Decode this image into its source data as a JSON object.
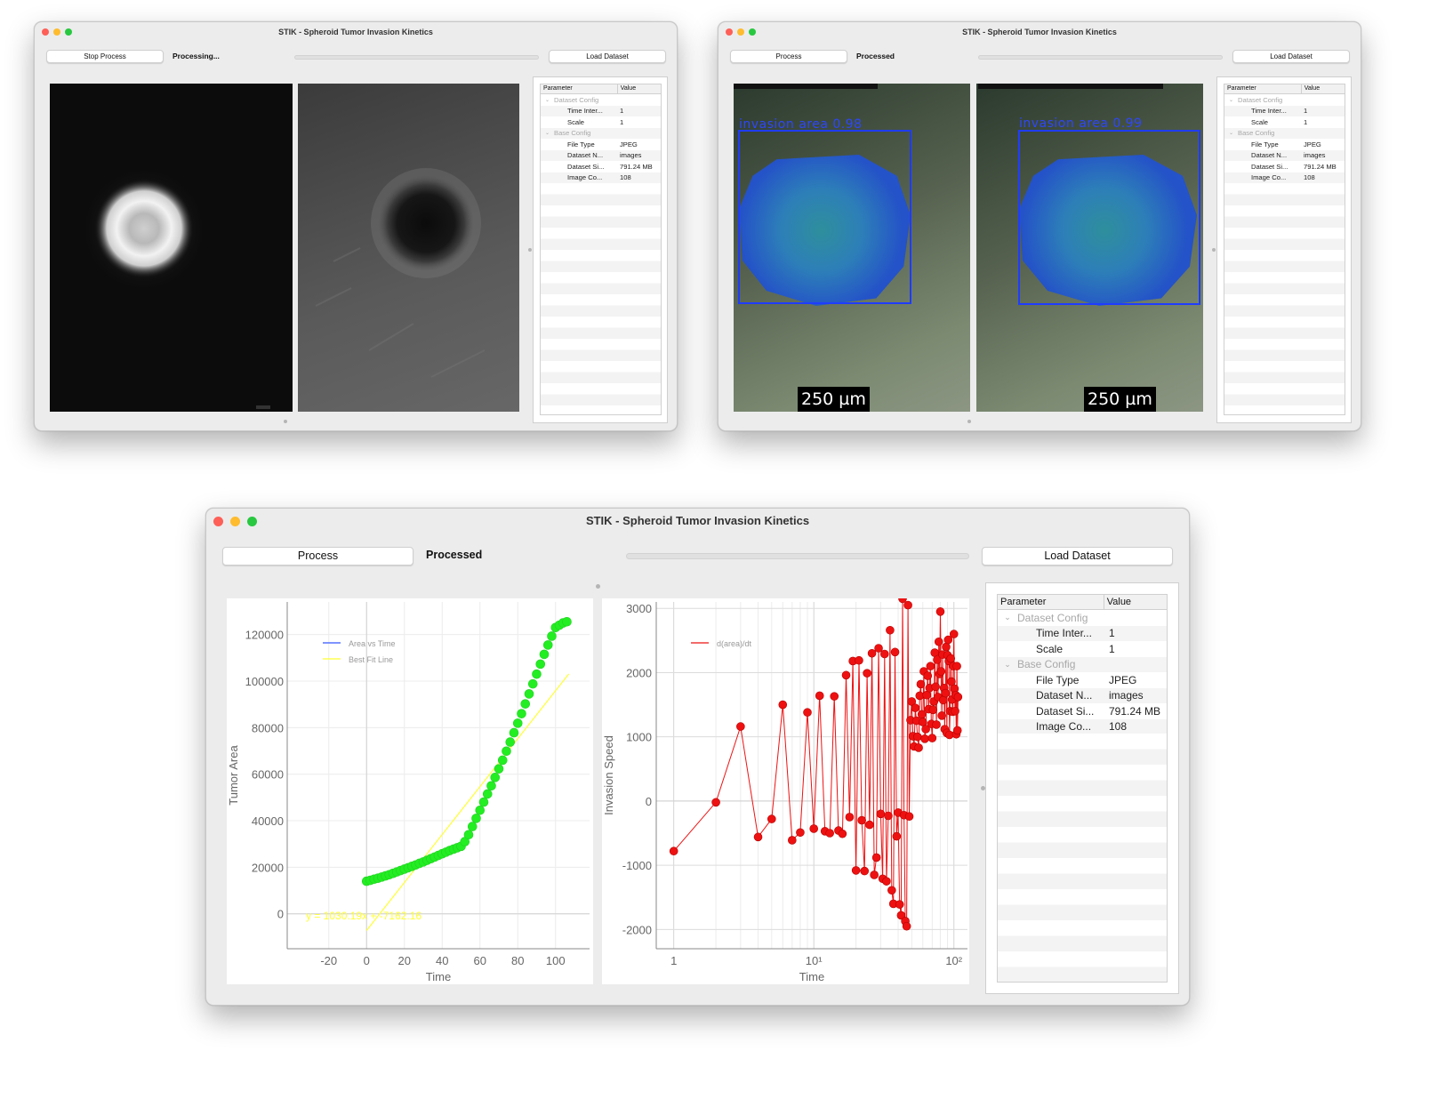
{
  "app_title": "STIK - Spheroid Tumor Invasion Kinetics",
  "windows": {
    "w1": {
      "title": "STIK - Spheroid Tumor Invasion Kinetics",
      "action_button": "Stop Process",
      "status": "Processing...",
      "load_button": "Load Dataset",
      "progress": 0
    },
    "w2": {
      "title": "STIK - Spheroid Tumor Invasion Kinetics",
      "action_button": "Process",
      "status": "Processed",
      "load_button": "Load Dataset",
      "progress": 0,
      "detections": [
        {
          "label": "invasion area 0.98",
          "scale_bar": "250 µm"
        },
        {
          "label": "invasion area 0.99",
          "scale_bar": "250 µm"
        }
      ]
    },
    "w3": {
      "title": "STIK - Spheroid Tumor Invasion Kinetics",
      "action_button": "Process",
      "status": "Processed",
      "load_button": "Load Dataset",
      "progress": 0
    }
  },
  "param_table": {
    "headers": [
      "Parameter",
      "Value"
    ],
    "groups": [
      {
        "name": "Dataset Config",
        "rows": [
          {
            "param": "Time Inter...",
            "value": "1"
          },
          {
            "param": "Scale",
            "value": "1"
          }
        ]
      },
      {
        "name": "Base Config",
        "rows": [
          {
            "param": "File Type",
            "value": "JPEG"
          },
          {
            "param": "Dataset N...",
            "value": "images"
          },
          {
            "param": "Dataset Si...",
            "value": "791.24 MB"
          },
          {
            "param": "Image Co...",
            "value": "108"
          }
        ]
      }
    ]
  },
  "colors": {
    "area_series": "#22ee22",
    "fit_line": "#ffff33",
    "speed_series": "#ee1111",
    "legend_area": "#3355ff",
    "detection_box": "#1f3cff"
  },
  "chart_data": [
    {
      "type": "scatter",
      "xlabel": "Time",
      "ylabel": "Tumor Area",
      "xlim": [
        -42,
        118
      ],
      "ylim": [
        -15000,
        134000
      ],
      "xticks": [
        -20,
        0,
        20,
        40,
        60,
        80,
        100
      ],
      "yticks": [
        0,
        20000,
        40000,
        60000,
        80000,
        100000,
        120000
      ],
      "legend": [
        "Area vs Time",
        "Best Fit Line"
      ],
      "legend_position": "top-left",
      "fit_equation": "y = 1030.19x + -7162.16",
      "fit": {
        "slope": 1030.19,
        "intercept": -7162.16,
        "x_range": [
          0,
          107
        ]
      },
      "series": {
        "x": [
          0,
          2,
          4,
          6,
          8,
          10,
          12,
          14,
          16,
          18,
          20,
          22,
          24,
          26,
          28,
          30,
          32,
          34,
          36,
          38,
          40,
          42,
          44,
          46,
          48,
          50,
          52,
          54,
          56,
          58,
          60,
          62,
          64,
          66,
          68,
          70,
          72,
          74,
          76,
          78,
          80,
          82,
          84,
          86,
          88,
          90,
          92,
          94,
          96,
          98,
          100,
          102,
          104,
          106
        ],
        "y": [
          14000,
          14400,
          14900,
          15300,
          15800,
          16300,
          16800,
          17400,
          18000,
          18600,
          19200,
          19800,
          20400,
          21000,
          21700,
          22300,
          23000,
          23700,
          24400,
          25100,
          25800,
          26500,
          27200,
          27800,
          28400,
          29000,
          31000,
          34000,
          37500,
          41000,
          44500,
          48000,
          51500,
          55000,
          58600,
          62300,
          66000,
          69900,
          73800,
          77800,
          81900,
          86000,
          90200,
          94500,
          98800,
          103000,
          107300,
          111500,
          115500,
          119300,
          123000,
          124000,
          125000,
          125500
        ]
      }
    },
    {
      "type": "line",
      "xlabel": "Time",
      "ylabel": "Invasion Speed",
      "xscale": "log",
      "xlim": [
        0.75,
        125
      ],
      "ylim": [
        -2300,
        3100
      ],
      "xticks": [
        "1",
        "10¹",
        "10²"
      ],
      "yticks": [
        -2000,
        -1000,
        0,
        1000,
        2000,
        3000
      ],
      "legend": [
        "d(area)/dt"
      ],
      "legend_position": "top-left",
      "series": {
        "x": [
          1,
          2,
          3,
          4,
          5,
          6,
          7,
          8,
          9,
          10,
          11,
          12,
          13,
          14,
          15,
          16,
          17,
          18,
          19,
          20,
          21,
          22,
          23,
          24,
          25,
          26,
          27,
          28,
          29,
          30,
          31,
          32,
          33,
          34,
          35,
          36,
          37,
          38,
          39,
          40,
          41,
          42,
          43,
          44,
          45,
          46,
          47,
          48,
          49,
          50,
          51,
          52,
          53,
          54,
          55,
          56,
          57,
          58,
          59,
          60,
          61,
          62,
          63,
          64,
          65,
          66,
          67,
          68,
          69,
          70,
          71,
          72,
          73,
          74,
          75,
          76,
          77,
          78,
          79,
          80,
          81,
          82,
          83,
          84,
          85,
          86,
          87,
          88,
          89,
          90,
          91,
          92,
          93,
          94,
          95,
          96,
          97,
          98,
          99,
          100,
          101,
          102,
          103,
          104,
          105,
          106,
          107
        ],
        "y": [
          -780,
          -20,
          1160,
          -560,
          -280,
          1500,
          -610,
          -490,
          1380,
          -430,
          1640,
          -470,
          -500,
          1630,
          -460,
          -510,
          1960,
          -250,
          2180,
          -1080,
          2190,
          -300,
          -1090,
          1990,
          -370,
          2300,
          -1150,
          -880,
          2380,
          -200,
          -1210,
          2290,
          -1250,
          -230,
          2660,
          -1390,
          -1600,
          2320,
          -550,
          -180,
          -1610,
          -1780,
          3150,
          -220,
          -1870,
          -1950,
          3050,
          -240,
          1260,
          1550,
          1010,
          850,
          1450,
          1250,
          1000,
          830,
          1640,
          1820,
          1350,
          1230,
          2020,
          970,
          1120,
          1650,
          1950,
          1430,
          1760,
          2100,
          1200,
          980,
          1420,
          1550,
          2310,
          1780,
          1190,
          2200,
          1620,
          2480,
          1980,
          2950,
          2020,
          1330,
          2280,
          1570,
          1760,
          1120,
          1680,
          2400,
          1060,
          2270,
          2510,
          2180,
          1030,
          1400,
          2220,
          1860,
          1580,
          1390,
          2100,
          2600,
          1750,
          1400,
          1650,
          1040,
          2100,
          1100,
          1620
        ]
      }
    }
  ]
}
